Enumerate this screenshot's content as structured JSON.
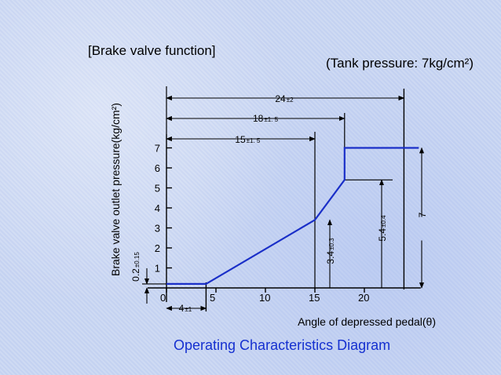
{
  "heading": "[Brake valve function]",
  "tank_note": "(Tank pressure: 7kg/cm²)",
  "caption": "Operating Characteristics Diagram",
  "caption_color": "#1530d0",
  "chart_data": {
    "type": "line",
    "title": "",
    "xlabel": "Angle of depressed pedal(θ)",
    "ylabel": "Brake valve outlet pressure(kg/cm²)",
    "xlim": [
      0,
      25
    ],
    "ylim": [
      0,
      7.7
    ],
    "x_ticks": [
      0,
      5,
      10,
      15,
      20
    ],
    "x_tick_labels": [
      "0",
      "5",
      "10",
      "15",
      "20"
    ],
    "y_ticks": [
      1,
      2,
      3,
      4,
      5,
      6,
      7
    ],
    "y_tick_labels": [
      "1",
      "2",
      "3",
      "4",
      "5",
      "6",
      "7"
    ],
    "grid": false,
    "series": [
      {
        "color": "#1a2fc8",
        "x": [
          0,
          4,
          15,
          18,
          18,
          25.5
        ],
        "y": [
          0.2,
          0.2,
          3.4,
          5.4,
          7,
          7
        ]
      }
    ],
    "dimensions": [
      {
        "base": "24",
        "tol": "±2"
      },
      {
        "base": "18",
        "tol": "±1. 5"
      },
      {
        "base": "15",
        "tol": "±1. 5"
      },
      {
        "base": "4",
        "tol": "±1"
      },
      {
        "base": "0.2",
        "tol": "±0.15"
      },
      {
        "base": "3.4",
        "tol": "±0.3"
      },
      {
        "base": "5.4",
        "tol": "±0.4"
      },
      {
        "base": "7",
        "tol": ""
      }
    ]
  }
}
